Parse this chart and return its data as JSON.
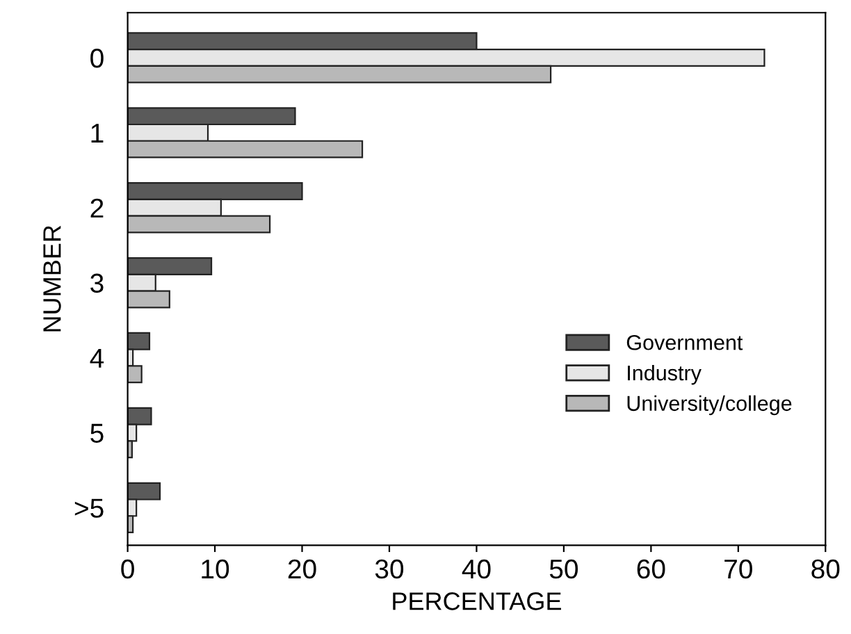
{
  "chart_data": {
    "type": "bar",
    "orientation": "horizontal",
    "xlabel": "PERCENTAGE",
    "ylabel": "NUMBER",
    "categories": [
      "0",
      "1",
      "2",
      "3",
      "4",
      "5",
      ">5"
    ],
    "series": [
      {
        "name": "Government",
        "color": "#5a5a5a",
        "values": [
          40,
          19.2,
          20,
          9.6,
          2.5,
          2.7,
          3.7
        ]
      },
      {
        "name": "Industry",
        "color": "#e6e6e6",
        "values": [
          73,
          9.2,
          10.7,
          3.2,
          0.6,
          1,
          1
        ]
      },
      {
        "name": "University/college",
        "color": "#b8b8b8",
        "values": [
          48.5,
          26.9,
          16.3,
          4.8,
          1.6,
          0.5,
          0.6
        ]
      }
    ],
    "xlim": [
      0,
      80
    ],
    "xticks": [
      0,
      10,
      20,
      30,
      40,
      50,
      60,
      70,
      80
    ],
    "grid": false,
    "legend": "right"
  }
}
